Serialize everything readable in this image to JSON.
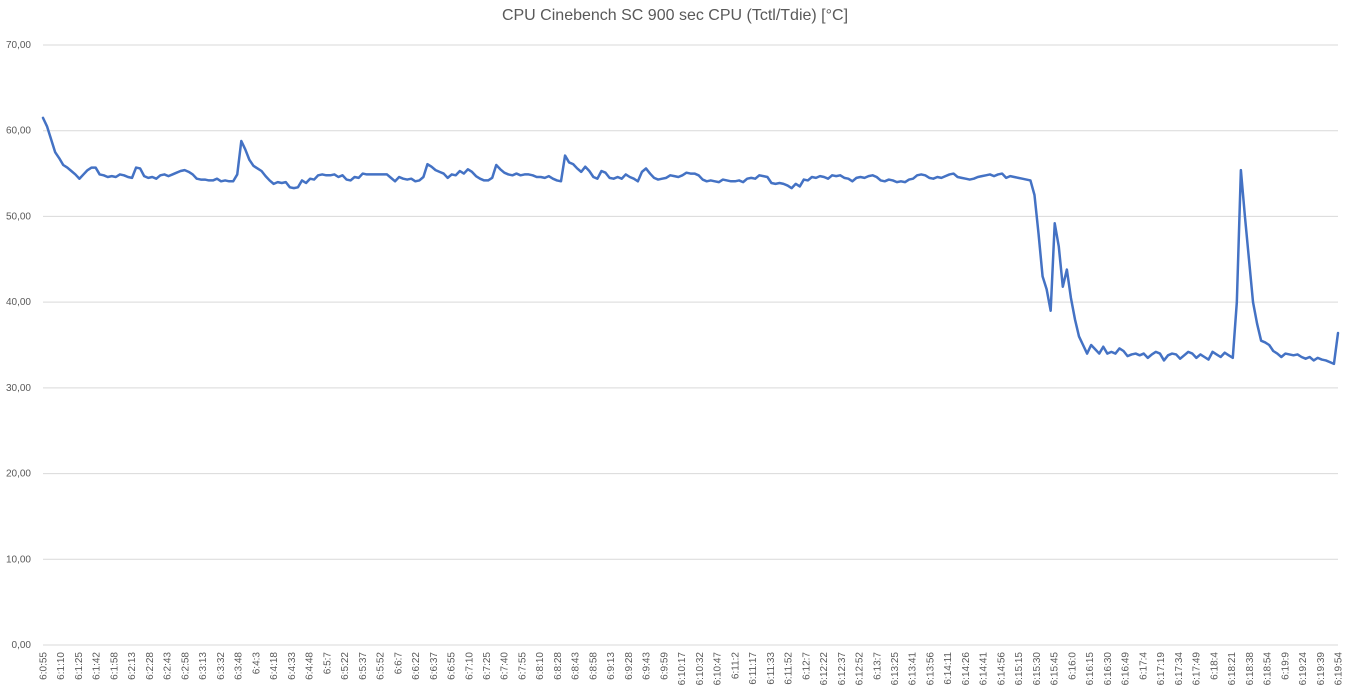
{
  "chart_data": {
    "type": "line",
    "title": "CPU Cinebench SC 900 sec  CPU (Tctl/Tdie) [°C]",
    "xlabel": "",
    "ylabel": "",
    "ylim": [
      0,
      70
    ],
    "yticks": [
      0,
      10,
      20,
      30,
      40,
      50,
      60,
      70
    ],
    "ytick_labels": [
      "0,00",
      "10,00",
      "20,00",
      "30,00",
      "40,00",
      "50,00",
      "60,00",
      "70,00"
    ],
    "grid": true,
    "line_color": "#4472C4",
    "x_tick_labels": [
      "6:0:55",
      "6:1:10",
      "6:1:25",
      "6:1:42",
      "6:1:58",
      "6:2:13",
      "6:2:28",
      "6:2:43",
      "6:2:58",
      "6:3:13",
      "6:3:32",
      "6:3:48",
      "6:4:3",
      "6:4:18",
      "6:4:33",
      "6:4:48",
      "6:5:7",
      "6:5:22",
      "6:5:37",
      "6:5:52",
      "6:6:7",
      "6:6:22",
      "6:6:37",
      "6:6:55",
      "6:7:10",
      "6:7:25",
      "6:7:40",
      "6:7:55",
      "6:8:10",
      "6:8:28",
      "6:8:43",
      "6:8:58",
      "6:9:13",
      "6:9:28",
      "6:9:43",
      "6:9:59",
      "6:10:17",
      "6:10:32",
      "6:10:47",
      "6:11:2",
      "6:11:17",
      "6:11:33",
      "6:11:52",
      "6:12:7",
      "6:12:22",
      "6:12:37",
      "6:12:52",
      "6:13:7",
      "6:13:25",
      "6:13:41",
      "6:13:56",
      "6:14:11",
      "6:14:26",
      "6:14:41",
      "6:14:56",
      "6:15:15",
      "6:15:30",
      "6:15:45",
      "6:16:0",
      "6:16:15",
      "6:16:30",
      "6:16:49",
      "6:17:4",
      "6:17:19",
      "6:17:34",
      "6:17:49",
      "6:18:4",
      "6:18:21",
      "6:18:38",
      "6:18:54",
      "6:19:9",
      "6:19:24",
      "6:19:39",
      "6:19:54"
    ],
    "series": [
      {
        "values": [
          61.5,
          60.5,
          59.0,
          57.5,
          56.8,
          56.0,
          55.7,
          55.3,
          54.9,
          54.4,
          54.9,
          55.4,
          55.7,
          55.7,
          54.9,
          54.8,
          54.6,
          54.7,
          54.6,
          54.9,
          54.8,
          54.6,
          54.5,
          55.7,
          55.6,
          54.7,
          54.5,
          54.6,
          54.4,
          54.8,
          54.9,
          54.7,
          54.9,
          55.1,
          55.3,
          55.4,
          55.2,
          54.9,
          54.4,
          54.3,
          54.3,
          54.2,
          54.2,
          54.4,
          54.1,
          54.2,
          54.1,
          54.1,
          54.9,
          58.8,
          57.8,
          56.6,
          55.9,
          55.6,
          55.3,
          54.7,
          54.2,
          53.8,
          54.0,
          53.9,
          54.0,
          53.4,
          53.3,
          53.4,
          54.2,
          53.9,
          54.4,
          54.3,
          54.8,
          54.9,
          54.8,
          54.8,
          54.9,
          54.6,
          54.8,
          54.3,
          54.2,
          54.6,
          54.5,
          55.0,
          54.9,
          54.9,
          54.9,
          54.9,
          54.9,
          54.9,
          54.5,
          54.1,
          54.6,
          54.4,
          54.3,
          54.4,
          54.1,
          54.2,
          54.6,
          56.1,
          55.8,
          55.4,
          55.2,
          55.0,
          54.5,
          54.9,
          54.8,
          55.3,
          55.0,
          55.5,
          55.2,
          54.7,
          54.4,
          54.2,
          54.2,
          54.5,
          56.0,
          55.5,
          55.1,
          54.9,
          54.8,
          55.0,
          54.8,
          54.9,
          54.9,
          54.8,
          54.6,
          54.6,
          54.5,
          54.7,
          54.4,
          54.2,
          54.1,
          57.1,
          56.3,
          56.1,
          55.6,
          55.2,
          55.8,
          55.3,
          54.6,
          54.4,
          55.3,
          55.1,
          54.5,
          54.4,
          54.6,
          54.4,
          54.9,
          54.6,
          54.4,
          54.1,
          55.2,
          55.6,
          55.0,
          54.5,
          54.3,
          54.4,
          54.5,
          54.8,
          54.7,
          54.6,
          54.8,
          55.1,
          55.0,
          55.0,
          54.8,
          54.3,
          54.1,
          54.2,
          54.1,
          54.0,
          54.3,
          54.2,
          54.1,
          54.1,
          54.2,
          54.0,
          54.4,
          54.5,
          54.4,
          54.8,
          54.7,
          54.6,
          53.9,
          53.8,
          53.9,
          53.8,
          53.6,
          53.3,
          53.8,
          53.5,
          54.3,
          54.2,
          54.6,
          54.5,
          54.7,
          54.6,
          54.4,
          54.8,
          54.7,
          54.8,
          54.5,
          54.4,
          54.1,
          54.5,
          54.6,
          54.5,
          54.7,
          54.8,
          54.6,
          54.2,
          54.1,
          54.3,
          54.2,
          54.0,
          54.1,
          54.0,
          54.3,
          54.4,
          54.8,
          54.9,
          54.8,
          54.5,
          54.4,
          54.6,
          54.5,
          54.7,
          54.9,
          55.0,
          54.6,
          54.5,
          54.4,
          54.3,
          54.4,
          54.6,
          54.7,
          54.8,
          54.9,
          54.7,
          54.9,
          55.0,
          54.5,
          54.7,
          54.6,
          54.5,
          54.4,
          54.3,
          54.2,
          52.5,
          48.0,
          43.0,
          41.5,
          39.0,
          49.2,
          46.5,
          41.8,
          43.8,
          40.5,
          38.0,
          36.0,
          35.0,
          34.0,
          35.0,
          34.5,
          34.0,
          34.8,
          34.0,
          34.2,
          34.0,
          34.6,
          34.3,
          33.7,
          33.9,
          34.0,
          33.8,
          34.0,
          33.5,
          33.9,
          34.2,
          34.0,
          33.2,
          33.8,
          34.0,
          33.9,
          33.4,
          33.8,
          34.2,
          34.0,
          33.5,
          33.9,
          33.6,
          33.3,
          34.2,
          33.9,
          33.6,
          34.1,
          33.8,
          33.5,
          40.0,
          55.4,
          50.0,
          45.0,
          40.0,
          37.5,
          35.5,
          35.3,
          35.0,
          34.3,
          34.0,
          33.6,
          34.0,
          33.9,
          33.8,
          33.9,
          33.6,
          33.4,
          33.6,
          33.2,
          33.5,
          33.3,
          33.2,
          33.0,
          32.8,
          36.4
        ]
      }
    ]
  }
}
